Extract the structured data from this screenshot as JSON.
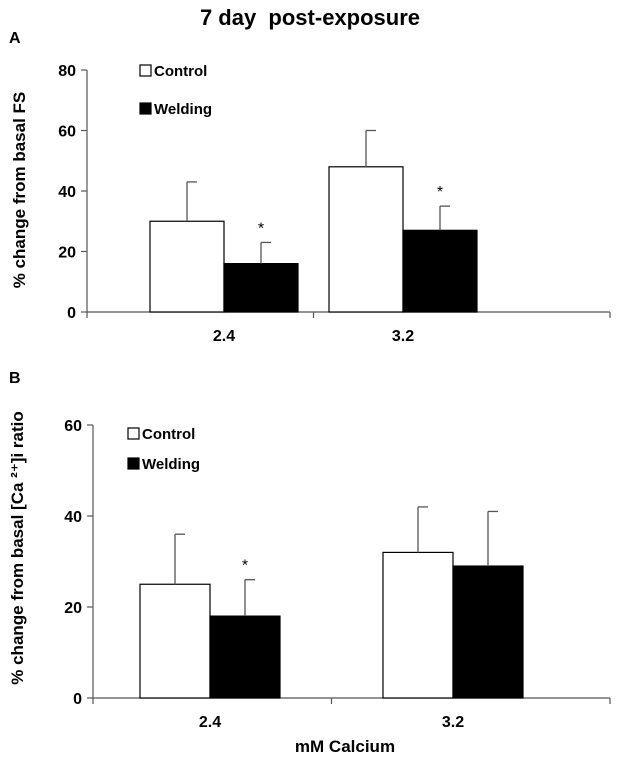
{
  "figure": {
    "title": "7 day  post-exposure",
    "xlabel": "mM Calcium"
  },
  "chart_data": [
    {
      "type": "bar",
      "panel_label": "A",
      "ylabel": "% change from basal FS",
      "categories": [
        "2.4",
        "3.2"
      ],
      "ylim": [
        0,
        80
      ],
      "yticks": [
        0,
        20,
        40,
        60,
        80
      ],
      "legend_position": "top-left",
      "series": [
        {
          "name": "Control",
          "fill": "#ffffff",
          "values": [
            30,
            48
          ],
          "errors": [
            13,
            12
          ],
          "significance": [
            "",
            ""
          ]
        },
        {
          "name": "Welding",
          "fill": "#000000",
          "values": [
            16,
            27
          ],
          "errors": [
            7,
            8
          ],
          "significance": [
            "*",
            "*"
          ]
        }
      ]
    },
    {
      "type": "bar",
      "panel_label": "B",
      "ylabel": "% change from basal [Ca ²⁺]i ratio",
      "categories": [
        "2.4",
        "3.2"
      ],
      "ylim": [
        0,
        60
      ],
      "yticks": [
        0,
        20,
        40,
        60
      ],
      "legend_position": "top-left",
      "series": [
        {
          "name": "Control",
          "fill": "#ffffff",
          "values": [
            25,
            32
          ],
          "errors": [
            11,
            10
          ],
          "significance": [
            "",
            ""
          ]
        },
        {
          "name": "Welding",
          "fill": "#000000",
          "values": [
            18,
            29
          ],
          "errors": [
            8,
            12
          ],
          "significance": [
            "*",
            ""
          ]
        }
      ]
    }
  ]
}
